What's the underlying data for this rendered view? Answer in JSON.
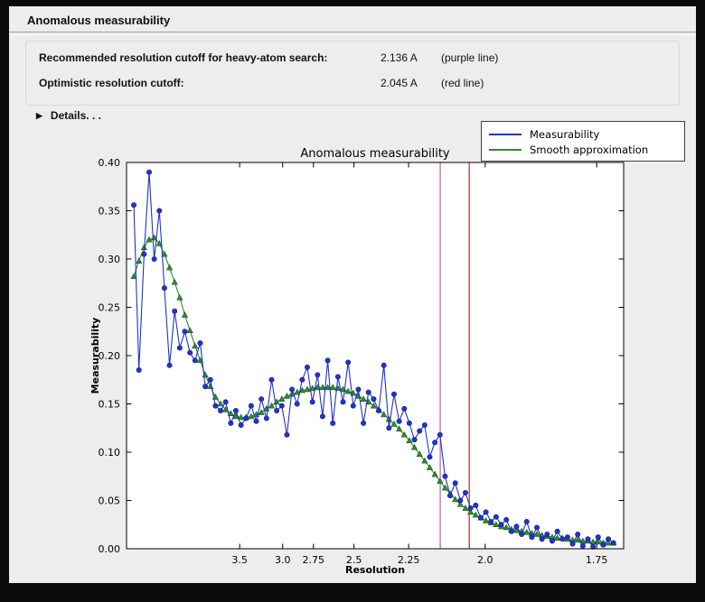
{
  "window": {
    "title": "Anomalous measurability"
  },
  "info": {
    "rows": [
      {
        "label": "Recommended resolution cutoff for heavy-atom search:",
        "value": "2.136 A",
        "note": "(purple line)"
      },
      {
        "label": "Optimistic resolution cutoff:",
        "value": "2.045 A",
        "note": "(red line)"
      }
    ],
    "details_label": "Details. . ."
  },
  "chart_data": {
    "type": "line",
    "title": "Anomalous measurability",
    "xlabel": "Resolution",
    "ylabel": "Measurability",
    "x_scale": "1/d^2 (tick labels in Angstrom, axis reversed in d)",
    "xlim": [
      0.004,
      0.345
    ],
    "ylim": [
      0.0,
      0.4
    ],
    "grid": false,
    "x_ticks": [
      {
        "label": "3.5",
        "x": 0.0816
      },
      {
        "label": "3.0",
        "x": 0.1111
      },
      {
        "label": "2.75",
        "x": 0.1322
      },
      {
        "label": "2.5",
        "x": 0.16
      },
      {
        "label": "2.25",
        "x": 0.1975
      },
      {
        "label": "2.0",
        "x": 0.25
      },
      {
        "label": "1.75",
        "x": 0.3265
      }
    ],
    "y_ticks": [
      "0.00",
      "0.05",
      "0.10",
      "0.15",
      "0.20",
      "0.25",
      "0.30",
      "0.35",
      "0.40"
    ],
    "legend": {
      "position": "upper right, outside axes",
      "entries": [
        {
          "label": "Measurability",
          "color": "#2233cc"
        },
        {
          "label": "Smooth approximation",
          "color": "#2e8b2e"
        }
      ]
    },
    "vlines": [
      {
        "name": "recommended cutoff (purple line)",
        "resolution_A": 2.136,
        "x": 0.2192,
        "color": "#b25fb2"
      },
      {
        "name": "optimistic cutoff (red line)",
        "resolution_A": 2.045,
        "x": 0.2391,
        "color": "#9e3232"
      }
    ],
    "x": [
      0.009,
      0.0125,
      0.016,
      0.0195,
      0.023,
      0.0265,
      0.03,
      0.0335,
      0.037,
      0.0405,
      0.044,
      0.0475,
      0.051,
      0.0545,
      0.058,
      0.0615,
      0.065,
      0.0685,
      0.072,
      0.0755,
      0.079,
      0.0825,
      0.086,
      0.0895,
      0.093,
      0.0965,
      0.1,
      0.1035,
      0.107,
      0.1105,
      0.114,
      0.1175,
      0.121,
      0.1245,
      0.128,
      0.1315,
      0.135,
      0.1385,
      0.142,
      0.1455,
      0.149,
      0.1525,
      0.156,
      0.1595,
      0.163,
      0.1665,
      0.17,
      0.1735,
      0.177,
      0.1805,
      0.184,
      0.1875,
      0.191,
      0.1945,
      0.198,
      0.2015,
      0.205,
      0.2085,
      0.212,
      0.2155,
      0.219,
      0.2225,
      0.226,
      0.2295,
      0.233,
      0.2365,
      0.24,
      0.2435,
      0.247,
      0.2505,
      0.254,
      0.2575,
      0.261,
      0.2645,
      0.268,
      0.2715,
      0.275,
      0.2785,
      0.282,
      0.2855,
      0.289,
      0.2925,
      0.296,
      0.2995,
      0.303,
      0.3065,
      0.31,
      0.3135,
      0.317,
      0.3205,
      0.324,
      0.3275,
      0.331,
      0.3345,
      0.338
    ],
    "series": [
      {
        "name": "Measurability",
        "marker": "circle",
        "color": "#2233cc",
        "y": [
          0.356,
          0.185,
          0.305,
          0.39,
          0.3,
          0.35,
          0.27,
          0.19,
          0.246,
          0.208,
          0.225,
          0.203,
          0.195,
          0.213,
          0.168,
          0.175,
          0.148,
          0.143,
          0.152,
          0.13,
          0.143,
          0.128,
          0.135,
          0.148,
          0.132,
          0.155,
          0.135,
          0.175,
          0.143,
          0.148,
          0.118,
          0.165,
          0.15,
          0.175,
          0.188,
          0.152,
          0.18,
          0.137,
          0.195,
          0.13,
          0.178,
          0.152,
          0.193,
          0.148,
          0.165,
          0.13,
          0.162,
          0.155,
          0.143,
          0.19,
          0.125,
          0.16,
          0.132,
          0.145,
          0.13,
          0.113,
          0.122,
          0.128,
          0.095,
          0.11,
          0.118,
          0.075,
          0.055,
          0.068,
          0.05,
          0.058,
          0.042,
          0.045,
          0.032,
          0.038,
          0.028,
          0.033,
          0.025,
          0.03,
          0.018,
          0.023,
          0.015,
          0.028,
          0.012,
          0.022,
          0.01,
          0.015,
          0.008,
          0.018,
          0.01,
          0.012,
          0.005,
          0.015,
          0.003,
          0.01,
          0.002,
          0.012,
          0.004,
          0.01,
          0.006
        ]
      },
      {
        "name": "Smooth approximation",
        "marker": "triangle",
        "color": "#2e8b2e",
        "y": [
          0.282,
          0.298,
          0.312,
          0.32,
          0.322,
          0.316,
          0.305,
          0.291,
          0.276,
          0.26,
          0.242,
          0.226,
          0.21,
          0.195,
          0.18,
          0.168,
          0.157,
          0.15,
          0.144,
          0.14,
          0.137,
          0.136,
          0.136,
          0.137,
          0.139,
          0.141,
          0.145,
          0.148,
          0.152,
          0.155,
          0.158,
          0.16,
          0.162,
          0.164,
          0.165,
          0.166,
          0.167,
          0.167,
          0.167,
          0.167,
          0.166,
          0.165,
          0.163,
          0.161,
          0.158,
          0.155,
          0.152,
          0.148,
          0.144,
          0.139,
          0.134,
          0.129,
          0.124,
          0.118,
          0.112,
          0.105,
          0.098,
          0.091,
          0.084,
          0.077,
          0.07,
          0.063,
          0.057,
          0.051,
          0.046,
          0.042,
          0.038,
          0.035,
          0.032,
          0.029,
          0.027,
          0.025,
          0.023,
          0.022,
          0.02,
          0.019,
          0.018,
          0.017,
          0.016,
          0.015,
          0.014,
          0.013,
          0.012,
          0.011,
          0.011,
          0.01,
          0.009,
          0.009,
          0.008,
          0.008,
          0.007,
          0.007,
          0.006,
          0.006,
          0.006
        ]
      }
    ]
  }
}
